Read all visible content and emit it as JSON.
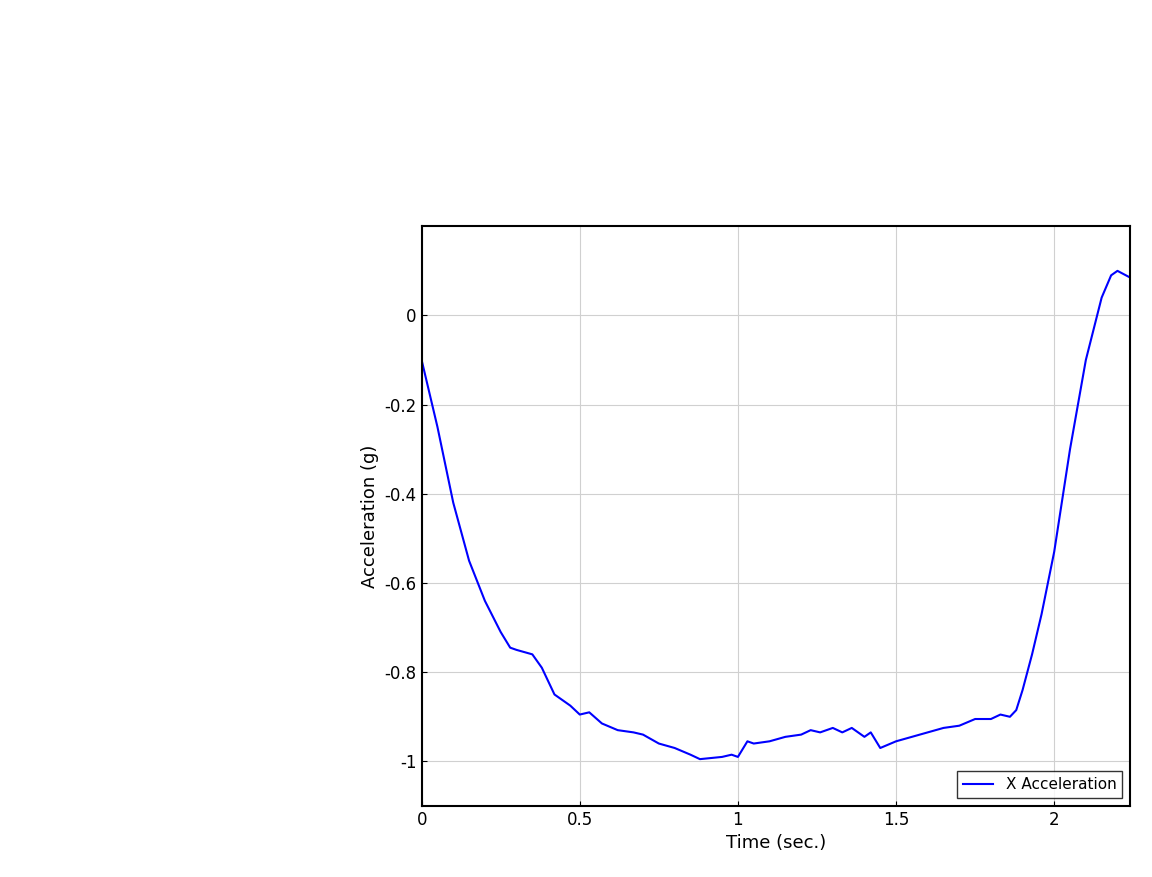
{
  "chart_data": {
    "type": "line",
    "xlabel": "Time (sec.)",
    "ylabel": "Acceleration (g)",
    "x": [
      0.0,
      0.05,
      0.1,
      0.15,
      0.2,
      0.25,
      0.28,
      0.3,
      0.35,
      0.38,
      0.42,
      0.47,
      0.5,
      0.53,
      0.57,
      0.62,
      0.67,
      0.7,
      0.75,
      0.8,
      0.85,
      0.88,
      0.95,
      0.98,
      1.0,
      1.03,
      1.05,
      1.1,
      1.15,
      1.2,
      1.23,
      1.26,
      1.3,
      1.33,
      1.36,
      1.4,
      1.42,
      1.45,
      1.5,
      1.55,
      1.6,
      1.65,
      1.7,
      1.75,
      1.8,
      1.83,
      1.86,
      1.88,
      1.9,
      1.93,
      1.96,
      2.0,
      2.05,
      2.1,
      2.15,
      2.18,
      2.2,
      2.24
    ],
    "series": [
      {
        "name": "X Acceleration",
        "color": "#0000ff",
        "values": [
          -0.1,
          -0.25,
          -0.42,
          -0.55,
          -0.64,
          -0.71,
          -0.745,
          -0.75,
          -0.76,
          -0.79,
          -0.85,
          -0.875,
          -0.895,
          -0.89,
          -0.915,
          -0.93,
          -0.935,
          -0.94,
          -0.96,
          -0.97,
          -0.985,
          -0.995,
          -0.99,
          -0.985,
          -0.99,
          -0.955,
          -0.96,
          -0.955,
          -0.945,
          -0.94,
          -0.93,
          -0.935,
          -0.925,
          -0.935,
          -0.925,
          -0.945,
          -0.935,
          -0.97,
          -0.955,
          -0.945,
          -0.935,
          -0.925,
          -0.92,
          -0.905,
          -0.905,
          -0.895,
          -0.9,
          -0.885,
          -0.84,
          -0.76,
          -0.67,
          -0.53,
          -0.3,
          -0.1,
          0.04,
          0.09,
          0.1,
          0.085
        ]
      }
    ],
    "xlim": [
      0,
      2.24
    ],
    "ylim": [
      -1.1,
      0.2
    ],
    "xticks": [
      0,
      0.5,
      1,
      1.5,
      2
    ],
    "yticks": [
      -1,
      -0.8,
      -0.6,
      -0.4,
      -0.2,
      0
    ],
    "grid": true,
    "legend": "lower right"
  }
}
